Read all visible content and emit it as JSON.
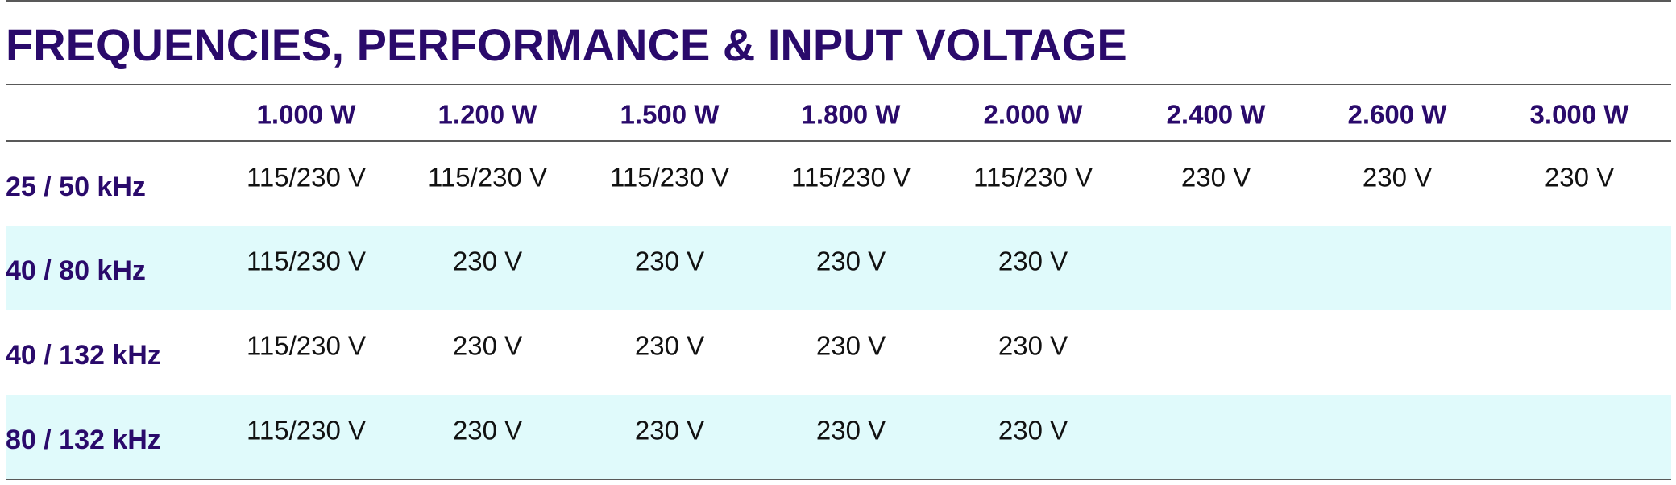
{
  "title": "FREQUENCIES, PERFORMANCE & INPUT VOLTAGE",
  "table": {
    "columns": [
      "1.000 W",
      "1.200 W",
      "1.500 W",
      "1.800 W",
      "2.000 W",
      "2.400 W",
      "2.600 W",
      "3.000 W"
    ],
    "rows": [
      {
        "label": "25 / 50 kHz",
        "cells": [
          "115/230 V",
          "115/230 V",
          "115/230 V",
          "115/230 V",
          "115/230 V",
          "230 V",
          "230 V",
          "230 V"
        ]
      },
      {
        "label": "40 / 80 kHz",
        "cells": [
          "115/230 V",
          "230 V",
          "230 V",
          "230 V",
          "230 V"
        ]
      },
      {
        "label": "40 / 132 kHz",
        "cells": [
          "115/230 V",
          "230 V",
          "230 V",
          "230 V",
          "230 V"
        ]
      },
      {
        "label": "80 / 132 kHz",
        "cells": [
          "115/230 V",
          "230 V",
          "230 V",
          "230 V",
          "230 V"
        ]
      }
    ]
  }
}
